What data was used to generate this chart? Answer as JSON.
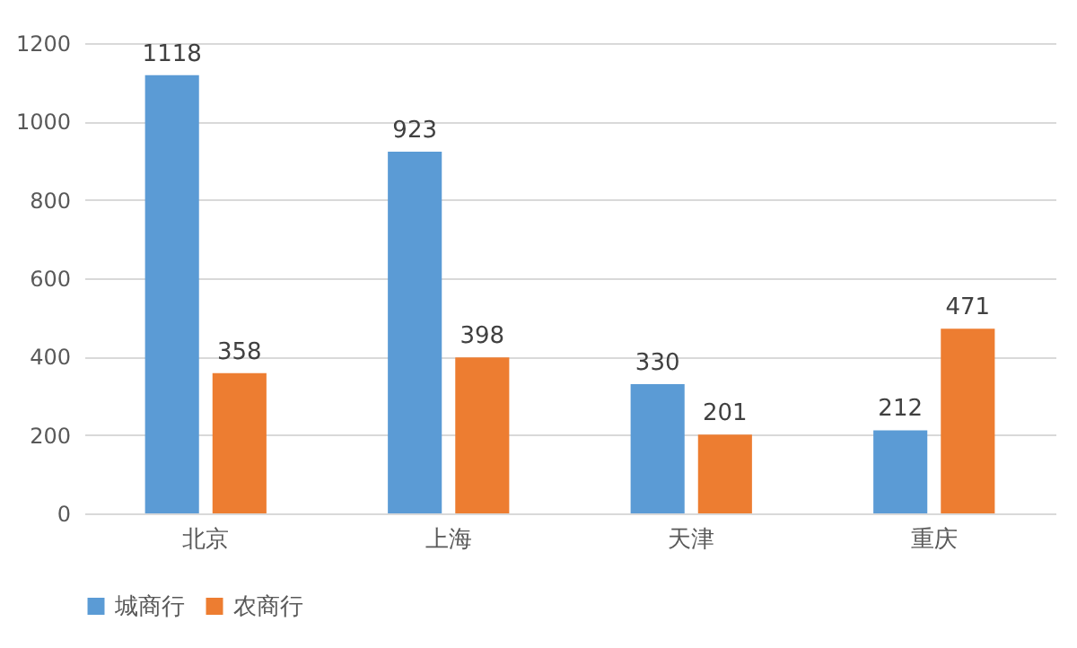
{
  "chart_data": {
    "type": "bar",
    "categories": [
      "北京",
      "上海",
      "天津",
      "重庆"
    ],
    "series": [
      {
        "name": "城商行",
        "color": "#5b9bd5",
        "values": [
          1118,
          923,
          330,
          212
        ]
      },
      {
        "name": "农商行",
        "color": "#ed7d31",
        "values": [
          358,
          398,
          201,
          471
        ]
      }
    ],
    "ylim": [
      0,
      1200
    ],
    "yticks": [
      0,
      200,
      400,
      600,
      800,
      1000,
      1200
    ],
    "grid": "y",
    "legend": "bottom",
    "data_labels": true
  }
}
